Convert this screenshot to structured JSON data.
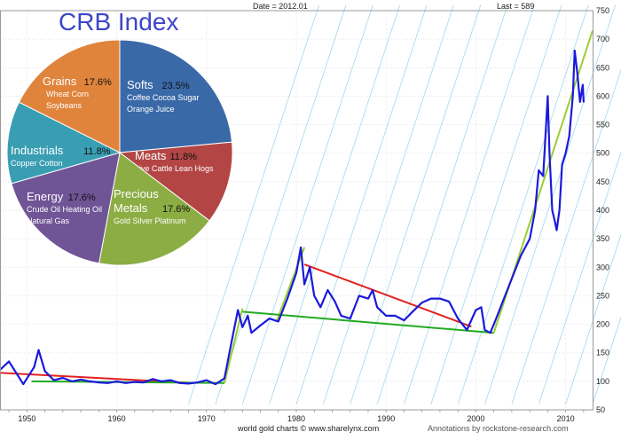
{
  "header": {
    "date_label": "Date = 2012.01",
    "last_label": "Last = 589"
  },
  "footer": {
    "source": "world gold charts © www.sharelynx.com",
    "annotations": "Annotations by rockstone-research.com"
  },
  "colors": {
    "price_line": "#1a1adc",
    "uptrend": "#9acd32",
    "downtrend": "#e22020",
    "support": "#22aa22",
    "channel": "#9fd8ef",
    "title": "#3c46c8"
  },
  "chart_data": [
    {
      "type": "line",
      "title": "",
      "xlabel": "",
      "ylabel": "",
      "xlim": [
        1947,
        2013
      ],
      "ylim": [
        50,
        750
      ],
      "x_ticks": [
        1950,
        1960,
        1970,
        1980,
        1990,
        2000,
        2010
      ],
      "y_ticks": [
        50,
        100,
        150,
        200,
        250,
        300,
        350,
        400,
        450,
        500,
        550,
        600,
        650,
        700,
        750
      ],
      "grid": true,
      "series": [
        {
          "x": [
            1947,
            1948,
            1949,
            1949.6,
            1950,
            1950.8,
            1951.3,
            1952,
            1953,
            1954,
            1955,
            1956,
            1957,
            1958,
            1959,
            1960,
            1961,
            1962,
            1963,
            1964,
            1965,
            1966,
            1967,
            1968,
            1969,
            1970,
            1971,
            1972,
            1972.8,
            1973.5,
            1974,
            1974.6,
            1975,
            1976,
            1977,
            1978,
            1979,
            1980,
            1980.5,
            1980.9,
            1981.5,
            1982,
            1982.7,
            1983.5,
            1984.3,
            1985,
            1986,
            1987,
            1988,
            1988.5,
            1989,
            1990,
            1991,
            1992,
            1993,
            1994,
            1995,
            1996,
            1997,
            1998,
            1999,
            2000,
            2000.6,
            2001,
            2001.6,
            2002,
            2003,
            2004,
            2005,
            2006,
            2006.6,
            2007,
            2007.5,
            2008,
            2008.2,
            2008.5,
            2008.8,
            2009,
            2009.3,
            2009.6,
            2010,
            2010.4,
            2010.8,
            2011,
            2011.3,
            2011.6,
            2011.9,
            2012
          ],
          "values": [
            120,
            135,
            110,
            95,
            105,
            125,
            155,
            118,
            102,
            106,
            100,
            103,
            100,
            98,
            97,
            100,
            97,
            99,
            98,
            104,
            100,
            102,
            97,
            96,
            98,
            102,
            95,
            105,
            170,
            225,
            195,
            215,
            185,
            198,
            210,
            205,
            245,
            290,
            335,
            270,
            300,
            250,
            230,
            260,
            240,
            215,
            210,
            250,
            245,
            260,
            230,
            215,
            215,
            207,
            223,
            238,
            245,
            245,
            240,
            210,
            190,
            225,
            230,
            190,
            185,
            200,
            240,
            280,
            320,
            350,
            400,
            470,
            460,
            600,
            500,
            400,
            380,
            365,
            400,
            480,
            500,
            530,
            600,
            680,
            640,
            590,
            620,
            589
          ]
        }
      ],
      "trendlines": [
        {
          "name": "",
          "color": "#e22020",
          "points": [
            [
              1947,
              115
            ],
            [
              1968.5,
              97
            ]
          ]
        },
        {
          "name": "",
          "color": "#22aa22",
          "points": [
            [
              1950.5,
              100
            ],
            [
              1972,
              97
            ]
          ]
        },
        {
          "name": "",
          "color": "#9acd32",
          "points": [
            [
              1972,
              97
            ],
            [
              1974,
              228
            ]
          ]
        },
        {
          "name": "",
          "color": "#9acd32",
          "points": [
            [
              1977.8,
              205
            ],
            [
              1980.9,
              335
            ]
          ]
        },
        {
          "name": "",
          "color": "#22aa22",
          "points": [
            [
              1974,
              222
            ],
            [
              2002,
              185
            ]
          ]
        },
        {
          "name": "",
          "color": "#e22020",
          "points": [
            [
              1980.9,
              305
            ],
            [
              1999.5,
              196
            ]
          ]
        },
        {
          "name": "",
          "color": "#9acd32",
          "points": [
            [
              2002,
              185
            ],
            [
              2013,
              715
            ]
          ]
        }
      ]
    },
    {
      "type": "pie",
      "title": "CRB Index",
      "slices": [
        {
          "label": "Softs",
          "pct_label": "23.5%",
          "value": 23.5,
          "items": [
            "Coffee Cocoa Sugar",
            "Orange Juice"
          ],
          "color": "#3a69a8"
        },
        {
          "label": "Meats",
          "pct_label": "11.8%",
          "value": 11.8,
          "items": [
            "Live Cattle  Lean Hogs"
          ],
          "color": "#b34545"
        },
        {
          "label": "Precious",
          "label2": "Metals",
          "pct_label": "17.6%",
          "value": 17.6,
          "items": [
            "Gold  Silver  Platinum"
          ],
          "color": "#8bad44"
        },
        {
          "label": "Energy",
          "pct_label": "17.6%",
          "value": 17.6,
          "items": [
            "Crude Oil  Heating Oil",
            "Natural Gas"
          ],
          "color": "#6f5496"
        },
        {
          "label": "Industrials",
          "pct_label": "11.8%",
          "value": 11.8,
          "items": [
            "Copper   Cotton"
          ],
          "color": "#3a9eb3"
        },
        {
          "label": "Grains",
          "pct_label": "17.6%",
          "value": 17.6,
          "items": [
            "Wheat  Corn",
            "Soybeans"
          ],
          "color": "#e0843c"
        }
      ]
    }
  ]
}
